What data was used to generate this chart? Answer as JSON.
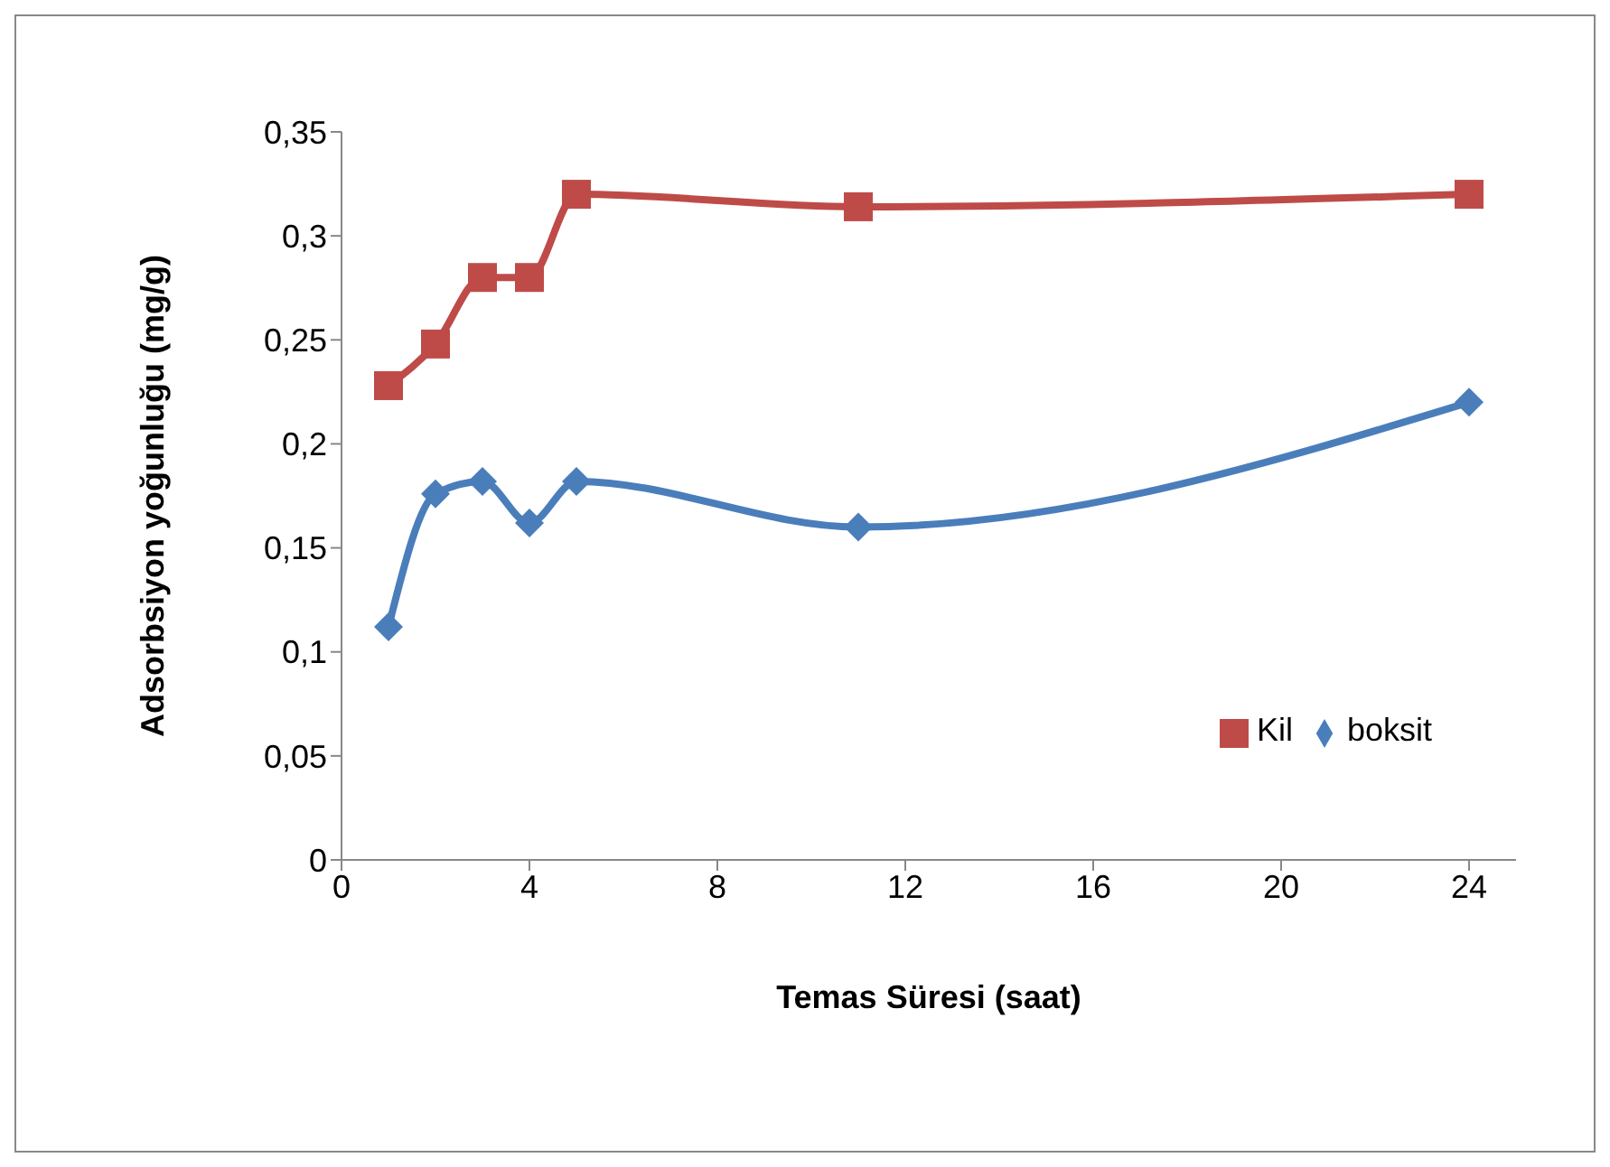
{
  "chart_data": {
    "type": "line",
    "xlabel": "Temas Süresi (saat)",
    "ylabel": "Adsorbsiyon yoğunluğu (mg/g)",
    "xlim": [
      0,
      25
    ],
    "xticks": [
      0,
      4,
      8,
      12,
      16,
      20,
      24
    ],
    "ylim": [
      0,
      0.35
    ],
    "yticks": [
      {
        "value": 0,
        "label": "0"
      },
      {
        "value": 0.05,
        "label": "0,05"
      },
      {
        "value": 0.1,
        "label": "0,1"
      },
      {
        "value": 0.15,
        "label": "0,15"
      },
      {
        "value": 0.2,
        "label": "0,2"
      },
      {
        "value": 0.25,
        "label": "0,25"
      },
      {
        "value": 0.3,
        "label": "0,3"
      },
      {
        "value": 0.35,
        "label": "0,35"
      }
    ],
    "grid": false,
    "legend": "right",
    "series": [
      {
        "name": "boksit",
        "color": "#4a7ebb",
        "marker": "diamond",
        "x": [
          1,
          2,
          3,
          4,
          5,
          11,
          24
        ],
        "values": [
          0.112,
          0.176,
          0.182,
          0.162,
          0.182,
          0.16,
          0.22
        ]
      },
      {
        "name": "Kil",
        "color": "#be4b48",
        "marker": "square",
        "x": [
          1,
          2,
          3,
          4,
          5,
          11,
          24
        ],
        "values": [
          0.228,
          0.248,
          0.28,
          0.28,
          0.32,
          0.314,
          0.32
        ]
      }
    ]
  }
}
